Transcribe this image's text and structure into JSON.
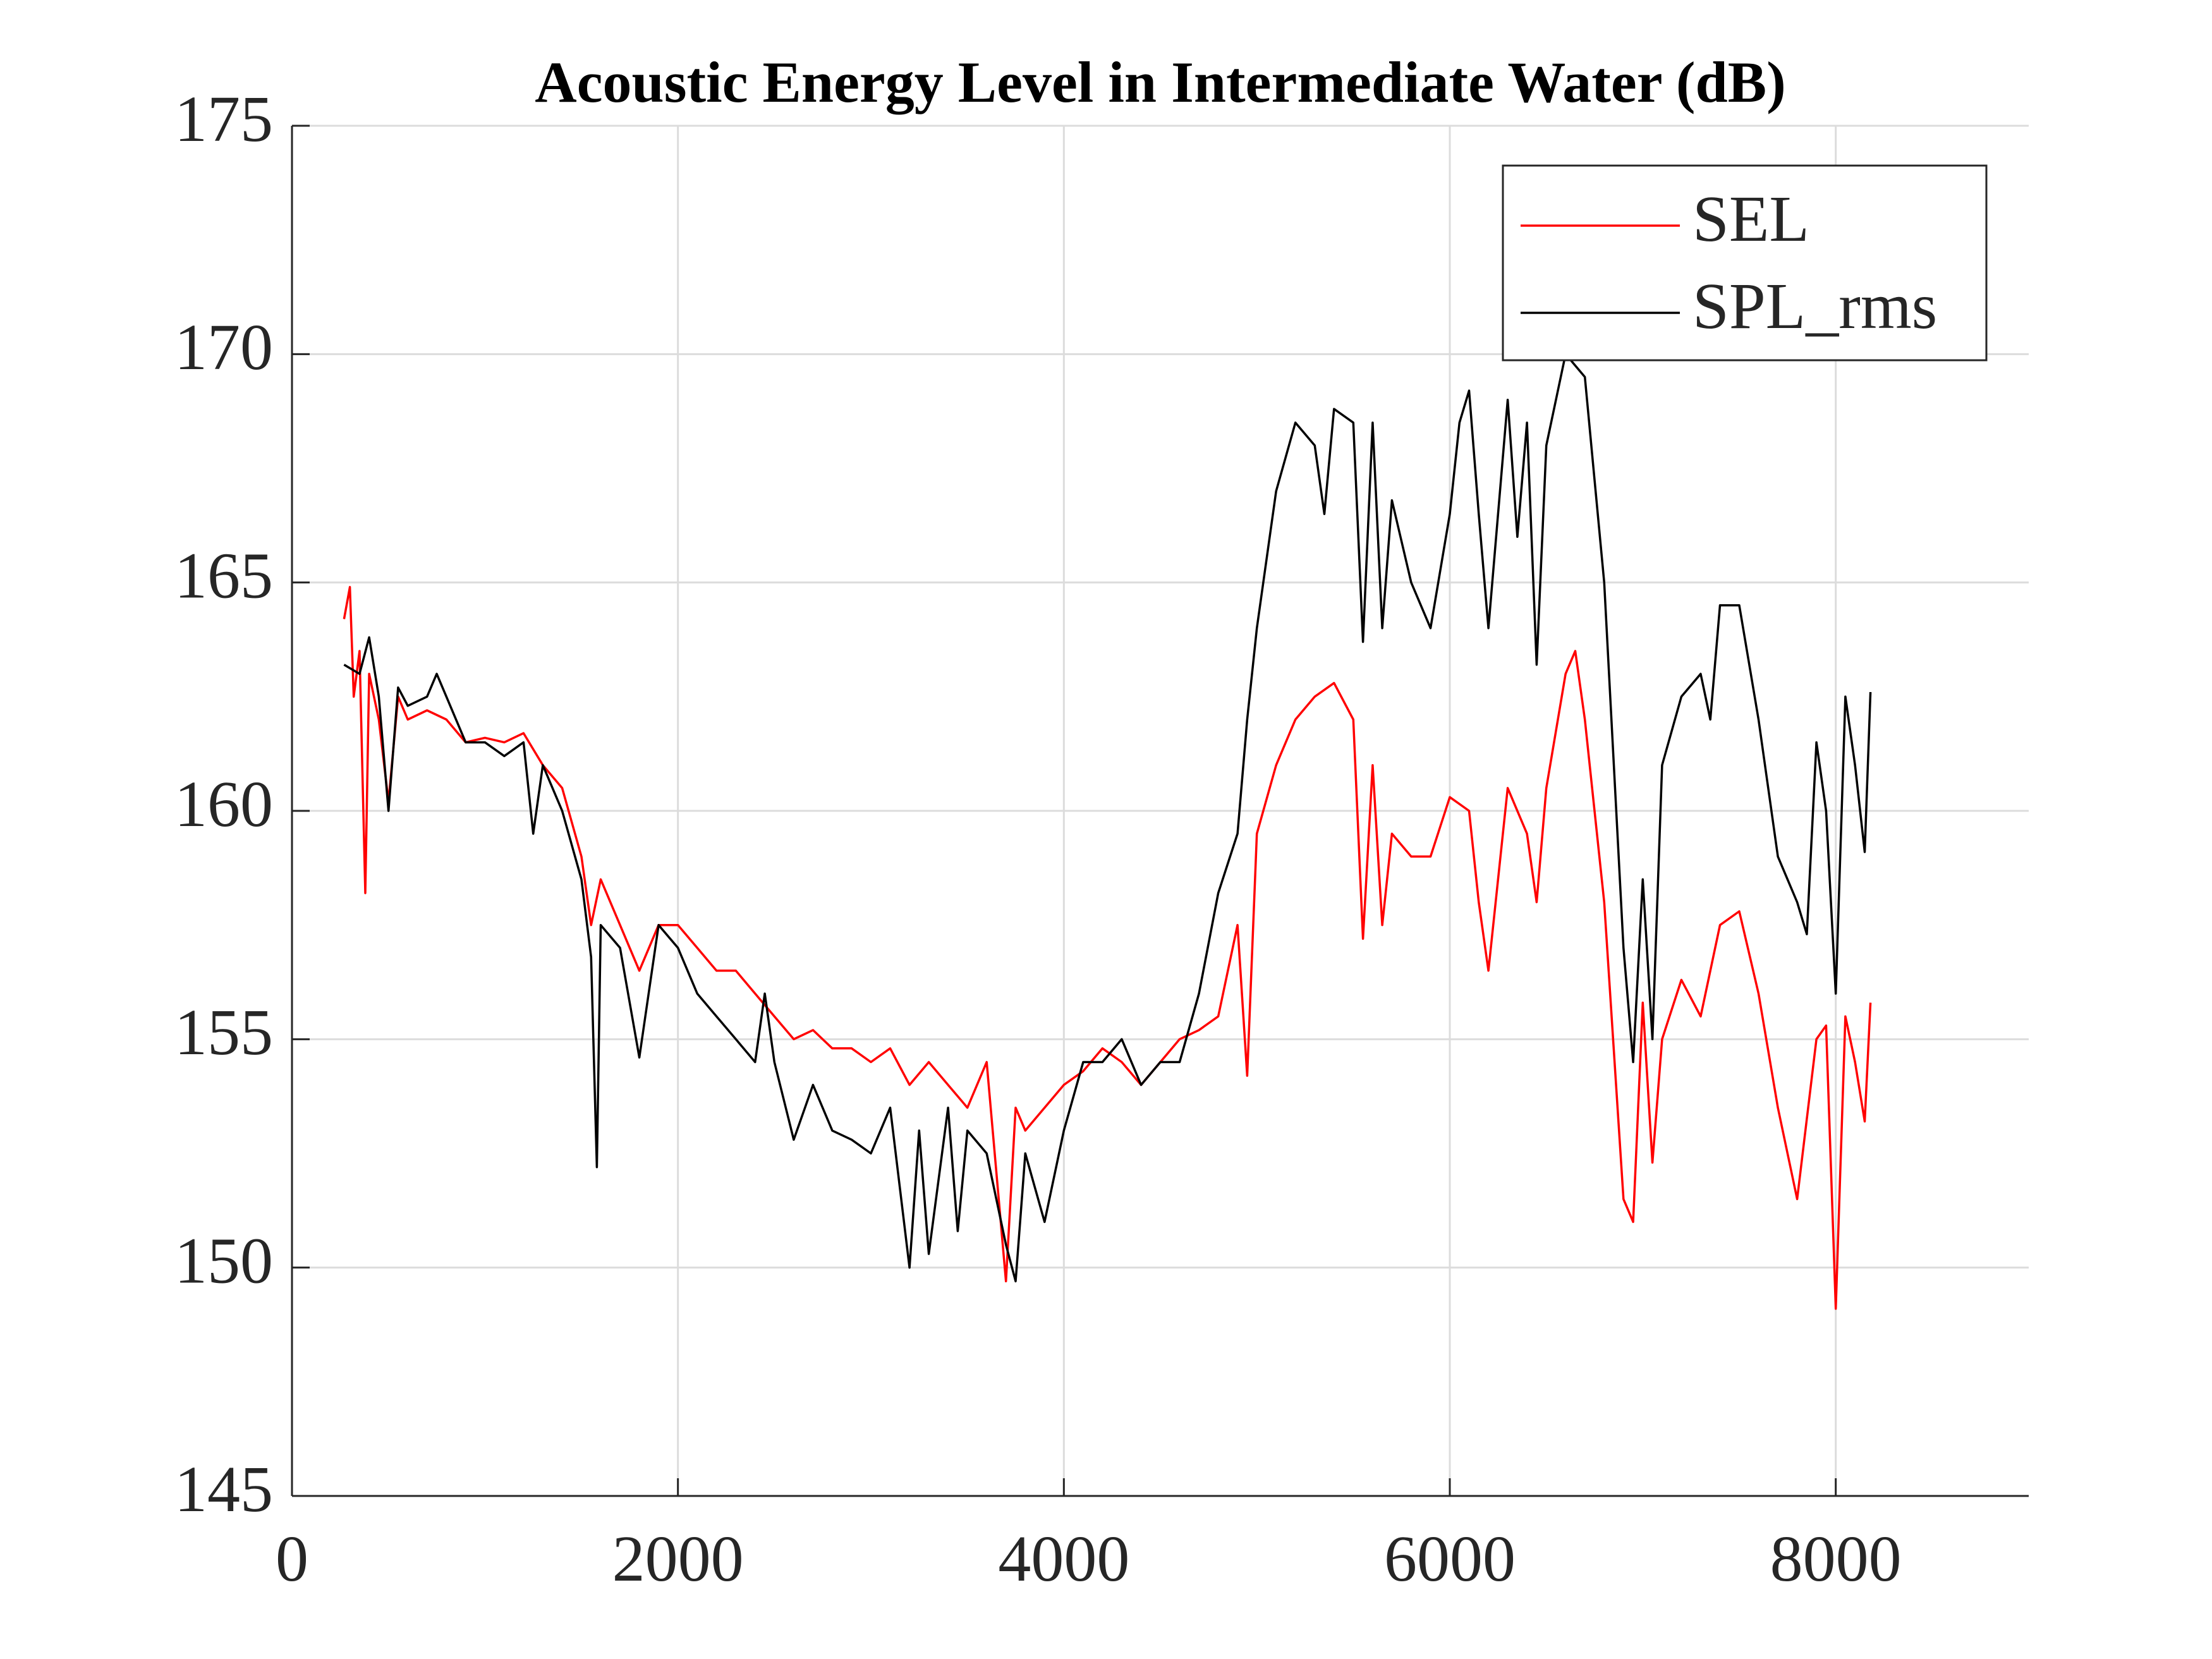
{
  "chart_data": {
    "type": "line",
    "title": "Acoustic Energy Level in Intermediate Water (dB)",
    "xlim": [
      0,
      9000
    ],
    "xticks": [
      0,
      2000,
      4000,
      6000,
      8000
    ],
    "ylim": [
      145,
      175
    ],
    "yticks": [
      145,
      150,
      155,
      160,
      165,
      170,
      175
    ],
    "grid": true,
    "legend": "top-right",
    "series": [
      {
        "name": "SEL",
        "color": "#ff0000",
        "x": [
          270,
          300,
          320,
          350,
          380,
          400,
          450,
          500,
          550,
          600,
          700,
          800,
          900,
          1000,
          1100,
          1200,
          1300,
          1400,
          1500,
          1550,
          1600,
          1700,
          1800,
          1900,
          2000,
          2100,
          2200,
          2300,
          2400,
          2500,
          2600,
          2700,
          2800,
          2900,
          3000,
          3100,
          3200,
          3300,
          3400,
          3500,
          3600,
          3700,
          3750,
          3800,
          3900,
          4000,
          4100,
          4200,
          4300,
          4400,
          4500,
          4600,
          4700,
          4800,
          4900,
          4950,
          5000,
          5100,
          5200,
          5300,
          5400,
          5500,
          5550,
          5600,
          5650,
          5700,
          5800,
          5900,
          6000,
          6100,
          6150,
          6200,
          6300,
          6400,
          6450,
          6500,
          6600,
          6650,
          6700,
          6800,
          6900,
          6950,
          7000,
          7050,
          7100,
          7200,
          7300,
          7400,
          7500,
          7600,
          7700,
          7800,
          7900,
          7950,
          8000,
          8050,
          8100,
          8150,
          8180
        ],
        "values": [
          164.2,
          164.9,
          162.5,
          163.5,
          158.2,
          163.0,
          162.0,
          160.2,
          162.5,
          162.0,
          162.2,
          162.0,
          161.5,
          161.6,
          161.5,
          161.7,
          161.0,
          160.5,
          159.0,
          157.5,
          158.5,
          157.5,
          156.5,
          157.5,
          157.5,
          157.0,
          156.5,
          156.5,
          156.0,
          155.5,
          155.0,
          155.2,
          154.8,
          154.8,
          154.5,
          154.8,
          154.0,
          154.5,
          154.0,
          153.5,
          154.5,
          149.7,
          153.5,
          153.0,
          153.5,
          154.0,
          154.3,
          154.8,
          154.5,
          154.0,
          154.5,
          155.0,
          155.2,
          155.5,
          157.5,
          154.2,
          159.5,
          161.0,
          162.0,
          162.5,
          162.8,
          162.0,
          157.2,
          161.0,
          157.5,
          159.5,
          159.0,
          159.0,
          160.3,
          160.0,
          158.0,
          156.5,
          160.5,
          159.5,
          158.0,
          160.5,
          163.0,
          163.5,
          162.0,
          158.0,
          151.5,
          151.0,
          155.8,
          152.3,
          155.0,
          156.3,
          155.5,
          157.5,
          157.8,
          156.0,
          153.5,
          151.5,
          155.0,
          155.3,
          149.1,
          155.5,
          154.5,
          153.2,
          155.8
        ]
      },
      {
        "name": "SPL_rms",
        "color": "#000000",
        "x": [
          270,
          350,
          400,
          450,
          500,
          550,
          600,
          700,
          750,
          800,
          900,
          1000,
          1100,
          1200,
          1250,
          1300,
          1400,
          1500,
          1550,
          1580,
          1600,
          1700,
          1800,
          1900,
          2000,
          2100,
          2200,
          2300,
          2400,
          2450,
          2500,
          2600,
          2700,
          2800,
          2900,
          3000,
          3100,
          3200,
          3250,
          3300,
          3400,
          3450,
          3500,
          3600,
          3700,
          3750,
          3800,
          3900,
          4000,
          4100,
          4200,
          4300,
          4400,
          4500,
          4600,
          4700,
          4800,
          4900,
          4950,
          5000,
          5100,
          5200,
          5300,
          5350,
          5400,
          5500,
          5550,
          5600,
          5650,
          5700,
          5800,
          5900,
          6000,
          6050,
          6100,
          6150,
          6200,
          6300,
          6350,
          6400,
          6450,
          6500,
          6600,
          6700,
          6800,
          6900,
          6950,
          7000,
          7050,
          7100,
          7200,
          7300,
          7350,
          7400,
          7500,
          7600,
          7700,
          7800,
          7850,
          7900,
          7950,
          8000,
          8050,
          8100,
          8150,
          8180
        ],
        "values": [
          163.2,
          163.0,
          163.8,
          162.5,
          160.0,
          162.7,
          162.3,
          162.5,
          163.0,
          162.5,
          161.5,
          161.5,
          161.2,
          161.5,
          159.5,
          161.0,
          160.0,
          158.5,
          156.8,
          152.2,
          157.5,
          157.0,
          154.6,
          157.5,
          157.0,
          156.0,
          155.5,
          155.0,
          154.5,
          156.0,
          154.5,
          152.8,
          154.0,
          153.0,
          152.8,
          152.5,
          153.5,
          150.0,
          153.0,
          150.3,
          153.5,
          150.8,
          153.0,
          152.5,
          150.5,
          149.7,
          152.5,
          151.0,
          153.0,
          154.5,
          154.5,
          155.0,
          154.0,
          154.5,
          154.5,
          156.0,
          158.2,
          159.5,
          162.0,
          164.0,
          167.0,
          168.5,
          168.0,
          166.5,
          168.8,
          168.5,
          163.7,
          168.5,
          164.0,
          166.8,
          165.0,
          164.0,
          166.5,
          168.5,
          169.2,
          166.5,
          164.0,
          169.0,
          166.0,
          168.5,
          163.2,
          168.0,
          170.0,
          169.5,
          165.0,
          157.0,
          154.5,
          158.5,
          155.0,
          161.0,
          162.5,
          163.0,
          162.0,
          164.5,
          164.5,
          162.0,
          159.0,
          158.0,
          157.3,
          161.5,
          160.0,
          156.0,
          162.5,
          161.0,
          159.1,
          162.6
        ]
      }
    ]
  }
}
